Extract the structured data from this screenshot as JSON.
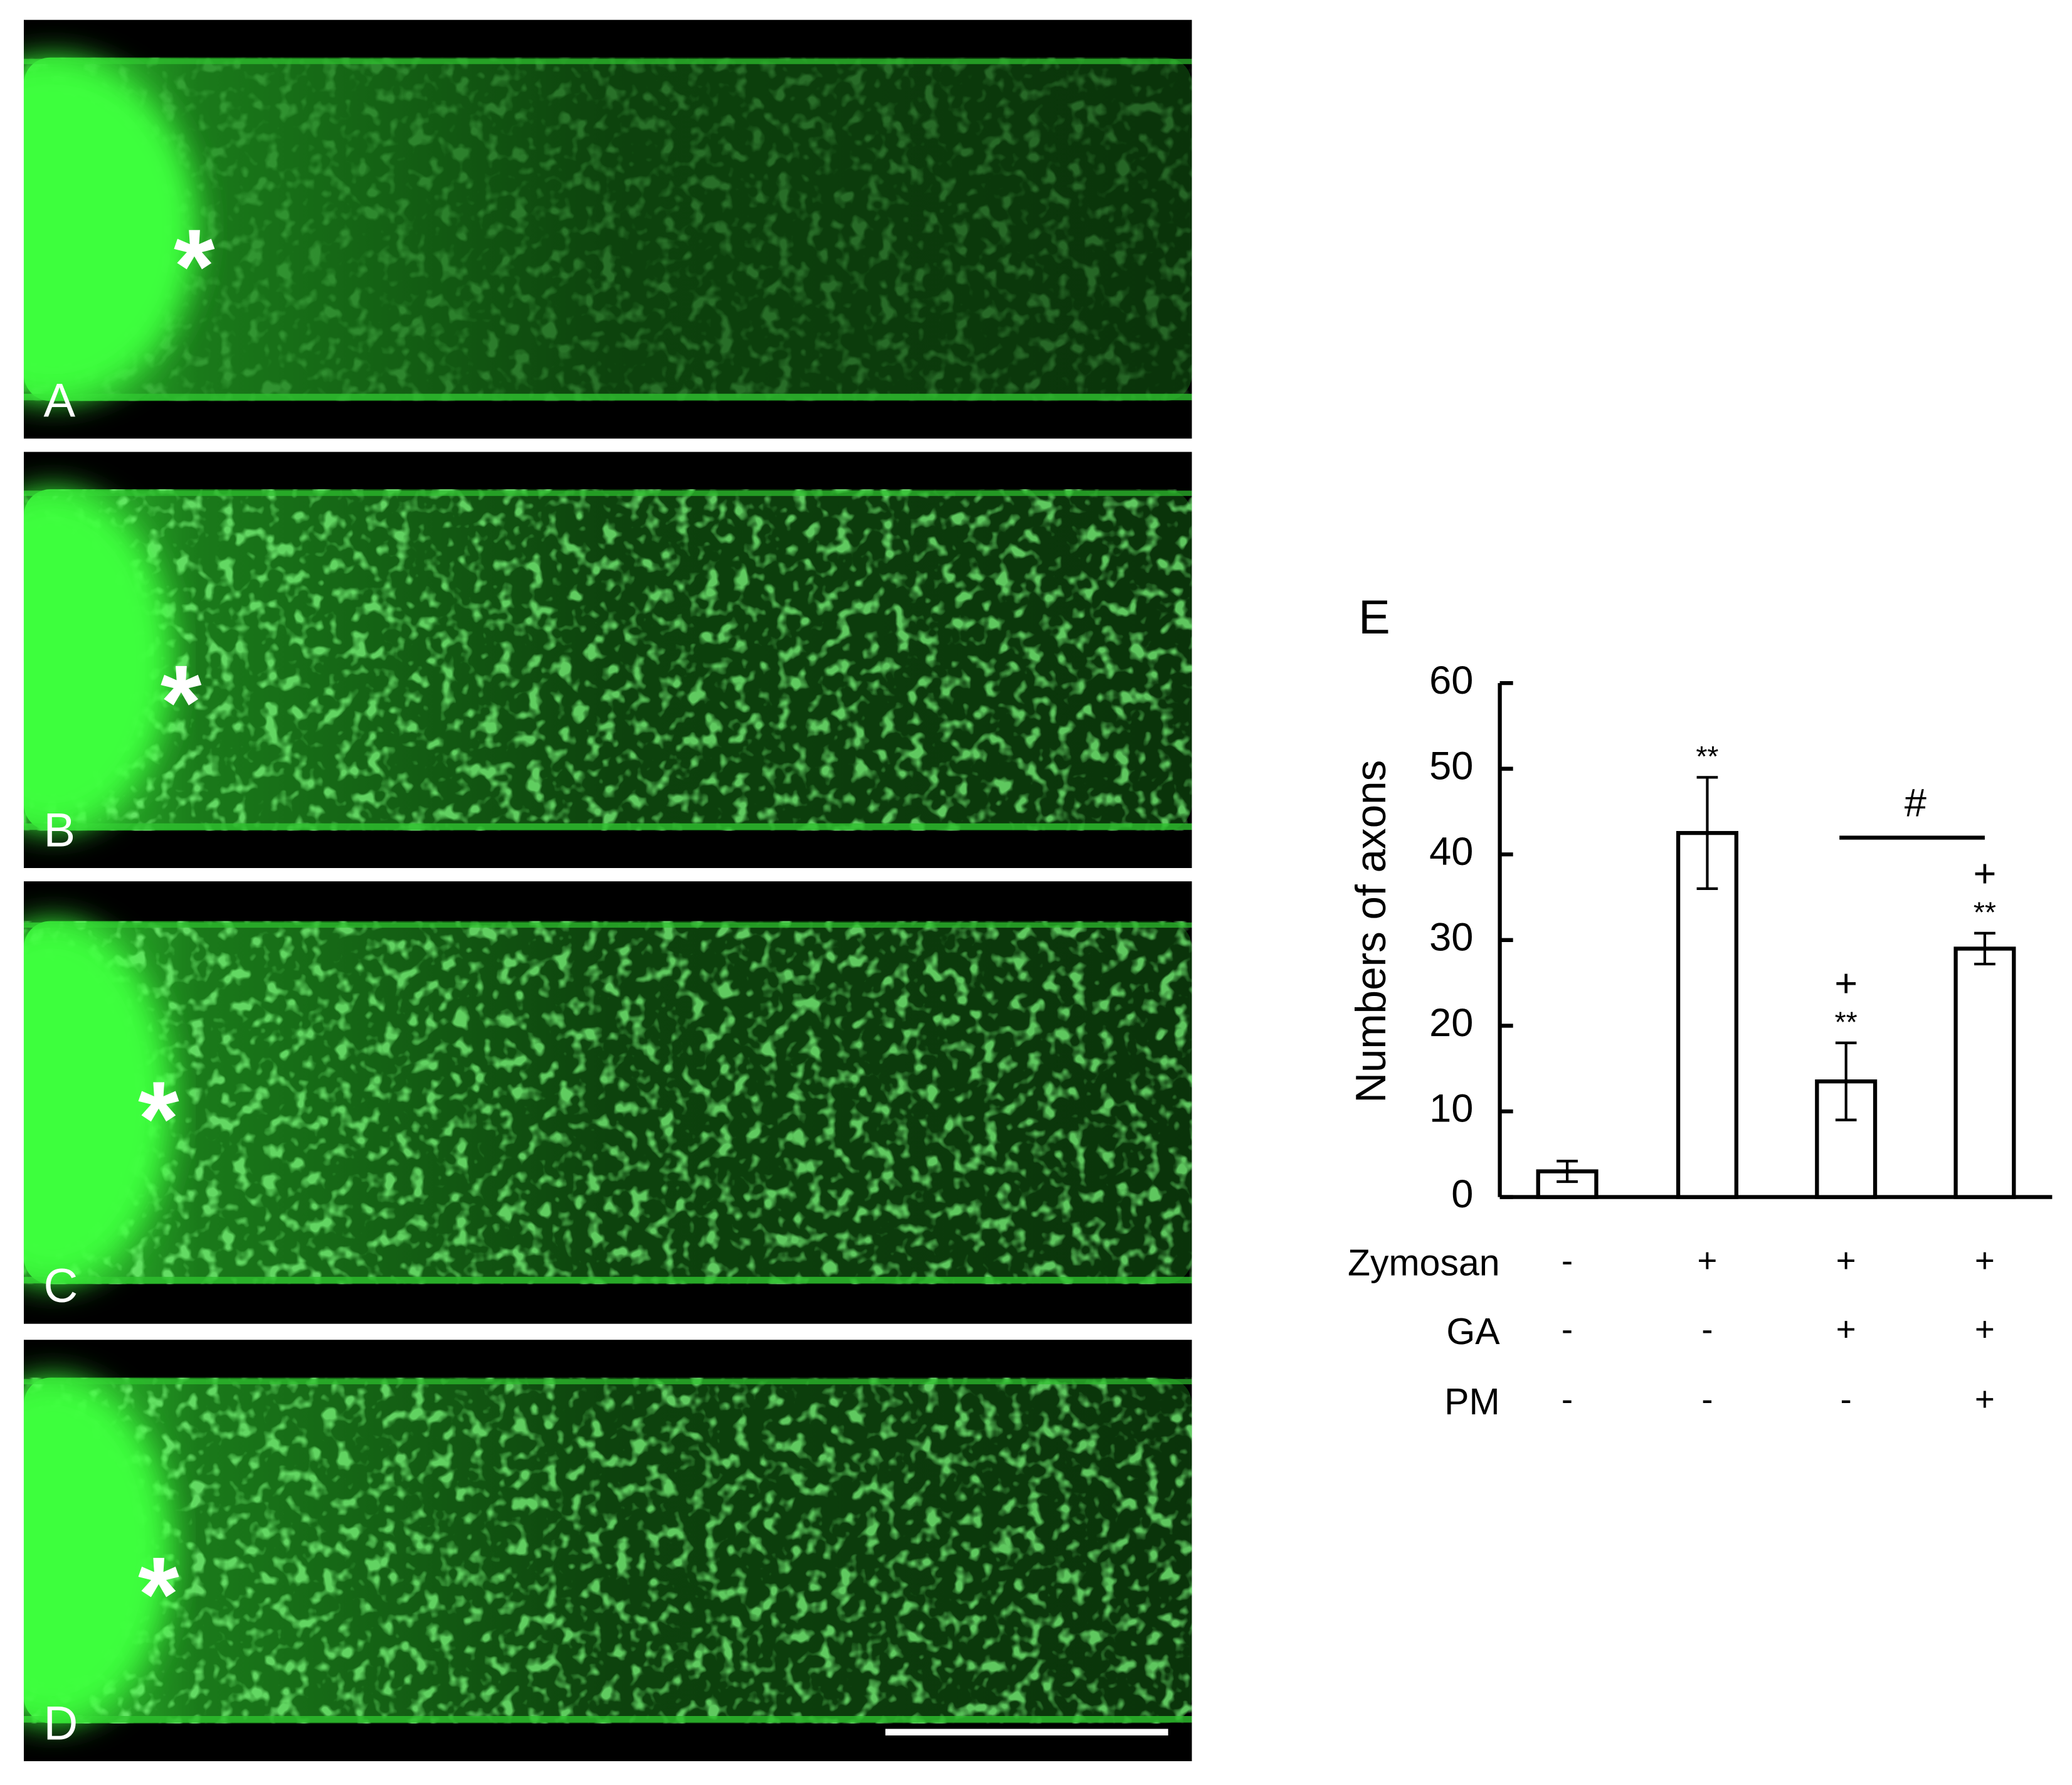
{
  "panels": [
    {
      "label": "A",
      "marker": "*"
    },
    {
      "label": "B",
      "marker": "*"
    },
    {
      "label": "C",
      "marker": "*"
    },
    {
      "label": "D",
      "marker": "*"
    }
  ],
  "chart_data": {
    "type": "bar",
    "panel_label": "E",
    "ylabel": "Numbers of axons",
    "categories": [
      null,
      null,
      null,
      null
    ],
    "values": [
      3,
      42.5,
      13.5,
      29
    ],
    "errors": [
      1.2,
      6.5,
      4.5,
      1.8
    ],
    "color": "#ffffff",
    "ylim": [
      0,
      60
    ],
    "yticks": [
      0,
      10,
      20,
      30,
      40,
      50,
      60
    ],
    "significance": [
      null,
      "**",
      "**",
      "**"
    ],
    "vs_zymosan": [
      null,
      null,
      "+",
      "+"
    ],
    "comparison_label": "#",
    "treatments": [
      {
        "name": "Zymosan",
        "values": [
          "-",
          "+",
          "+",
          "+"
        ]
      },
      {
        "name": "GA",
        "values": [
          "-",
          "-",
          "+",
          "+"
        ]
      },
      {
        "name": "PM",
        "values": [
          "-",
          "-",
          "-",
          "+"
        ]
      }
    ]
  }
}
